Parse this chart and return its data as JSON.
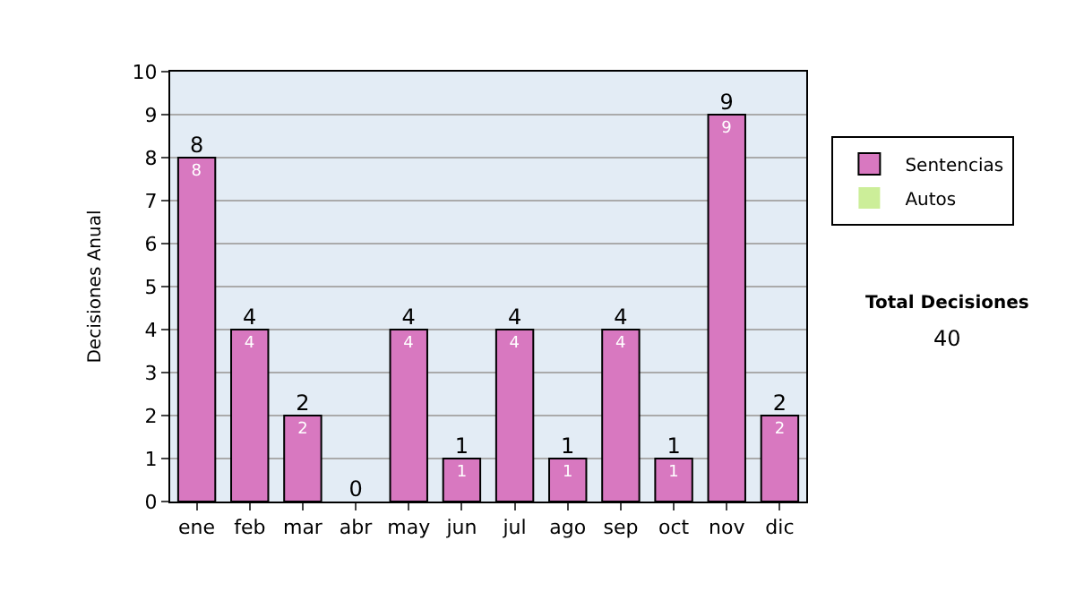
{
  "chart_data": {
    "type": "bar",
    "stacked": true,
    "ylabel": "Decisiones Anual",
    "categories": [
      "ene",
      "feb",
      "mar",
      "abr",
      "may",
      "jun",
      "jul",
      "ago",
      "sep",
      "oct",
      "nov",
      "dic"
    ],
    "series": [
      {
        "name": "Sentencias",
        "color": "#d878c0",
        "values": [
          8,
          4,
          2,
          0,
          4,
          1,
          4,
          1,
          4,
          1,
          9,
          2
        ],
        "value_labels": [
          "8",
          "4",
          "2",
          null,
          "4",
          "1",
          "4",
          "1",
          "4",
          "1",
          "9",
          "2"
        ]
      },
      {
        "name": "Autos",
        "color": "#ccee99",
        "values": [
          0,
          0,
          0,
          0,
          0,
          0,
          0,
          0,
          0,
          0,
          0,
          0
        ]
      }
    ],
    "totals": [
      "8",
      "4",
      "2",
      "0",
      "4",
      "1",
      "4",
      "1",
      "4",
      "1",
      "9",
      "2"
    ],
    "ylim": [
      0,
      10
    ],
    "yticks": [
      0,
      1,
      2,
      3,
      4,
      5,
      6,
      7,
      8,
      9,
      10
    ],
    "grid": "y",
    "legend": "right",
    "annotations": [
      "Total Decisiones",
      "40"
    ]
  }
}
